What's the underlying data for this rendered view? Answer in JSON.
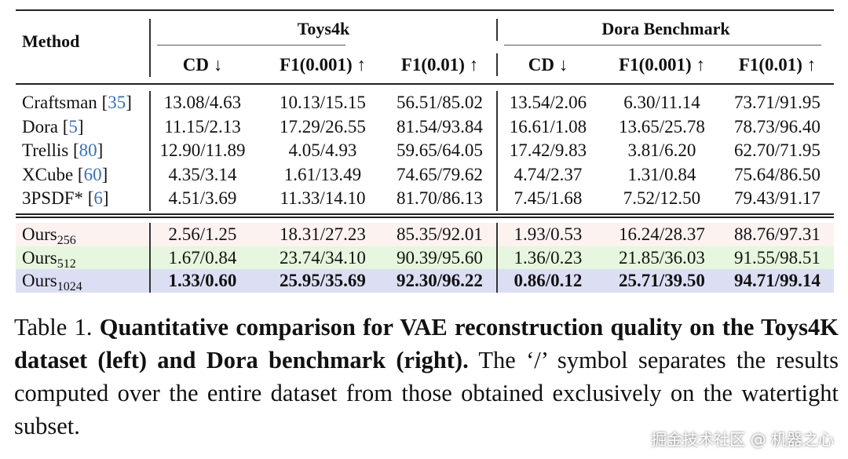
{
  "table": {
    "header": {
      "method": "Method",
      "groups": [
        "Toys4k",
        "Dora Benchmark"
      ],
      "metrics": [
        "CD ↓",
        "F1(0.001) ↑",
        "F1(0.01) ↑",
        "CD ↓",
        "F1(0.001) ↑",
        "F1(0.01) ↑"
      ]
    },
    "baselines": [
      {
        "name": "Craftsman",
        "ref": "35",
        "values": [
          "13.08/4.63",
          "10.13/15.15",
          "56.51/85.02",
          "13.54/2.06",
          "6.30/11.14",
          "73.71/91.95"
        ]
      },
      {
        "name": "Dora",
        "ref": "5",
        "values": [
          "11.15/2.13",
          "17.29/26.55",
          "81.54/93.84",
          "16.61/1.08",
          "13.65/25.78",
          "78.73/96.40"
        ]
      },
      {
        "name": "Trellis",
        "ref": "80",
        "values": [
          "12.90/11.89",
          "4.05/4.93",
          "59.65/64.05",
          "17.42/9.83",
          "3.81/6.20",
          "62.70/71.95"
        ]
      },
      {
        "name": "XCube",
        "ref": "60",
        "values": [
          "4.35/3.14",
          "1.61/13.49",
          "74.65/79.62",
          "4.74/2.37",
          "1.31/0.84",
          "75.64/86.50"
        ]
      },
      {
        "name": "3PSDF*",
        "ref": "6",
        "values": [
          "4.51/3.69",
          "11.33/14.10",
          "81.70/86.13",
          "7.45/1.68",
          "7.52/12.50",
          "79.43/91.17"
        ]
      }
    ],
    "ours": [
      {
        "name": "Ours",
        "sub": "256",
        "bg": "#fcf3f1",
        "values": [
          "2.56/1.25",
          "18.31/27.23",
          "85.35/92.01",
          "1.93/0.53",
          "16.24/28.37",
          "88.76/97.31"
        ]
      },
      {
        "name": "Ours",
        "sub": "512",
        "bg": "#e7f6de",
        "values": [
          "1.67/0.84",
          "23.74/34.10",
          "90.39/95.60",
          "1.36/0.23",
          "21.85/36.03",
          "91.55/98.51"
        ]
      },
      {
        "name": "Ours",
        "sub": "1024",
        "bg": "#dcdff4",
        "values": [
          "1.33/0.60",
          "25.95/35.69",
          "92.30/96.22",
          "0.86/0.12",
          "25.71/39.50",
          "94.71/99.14"
        ]
      }
    ]
  },
  "caption": {
    "label": "Table 1.",
    "bold": "Quantitative comparison for VAE reconstruction quality on the Toys4K dataset (left) and Dora benchmark (right).",
    "text": "The ‘/’ symbol separates the results computed over the entire dataset from those obtained exclusively on the watertight subset."
  },
  "watermark": "掘金技术社区 @ 机器之心"
}
